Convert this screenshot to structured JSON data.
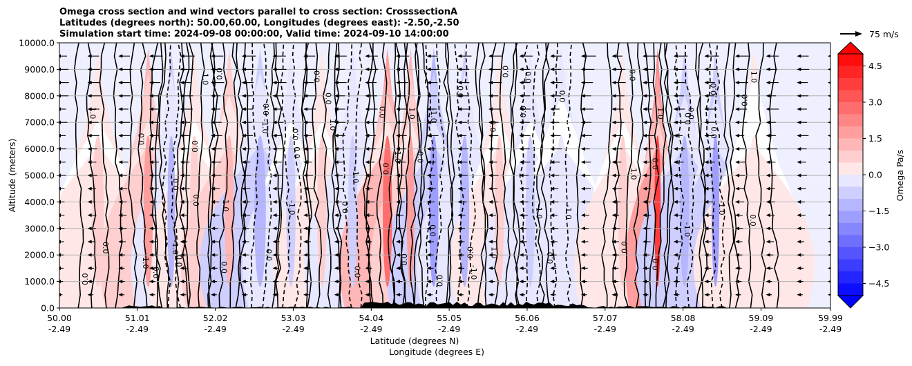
{
  "chart_data": {
    "type": "contour-cross-section",
    "title_lines": [
      "Omega cross section and wind vectors parallel to cross section: CrosssectionA",
      "Latitudes (degrees north): 50.00,60.00, Longitudes (degrees east): -2.50,-2.50",
      "Simulation start time: 2024-09-08 00:00:00, Valid time: 2024-09-10 14:00:00"
    ],
    "ylabel": "Altitude (meters)",
    "xlabel_lat": "Latitude (degrees N)",
    "xlabel_lon": "Longitude (degrees E)",
    "ylim": [
      0,
      10000
    ],
    "y_ticks": [
      "0.0",
      "1000.0",
      "2000.0",
      "3000.0",
      "4000.0",
      "5000.0",
      "6000.0",
      "7000.0",
      "8000.0",
      "9000.0",
      "10000.0"
    ],
    "y_tick_values": [
      0,
      1000,
      2000,
      3000,
      4000,
      5000,
      6000,
      7000,
      8000,
      9000,
      10000
    ],
    "xlim": [
      50.0,
      59.99
    ],
    "x_ticks_lat": [
      "50.00",
      "51.01",
      "52.02",
      "53.03",
      "54.04",
      "55.05",
      "56.06",
      "57.07",
      "58.08",
      "59.09",
      "59.99"
    ],
    "x_ticks_lon": [
      "-2.49",
      "-2.49",
      "-2.49",
      "-2.49",
      "-2.49",
      "-2.49",
      "-2.49",
      "-2.49",
      "-2.49",
      "-2.49",
      "-2.49"
    ],
    "x_tick_values": [
      50.0,
      51.01,
      52.02,
      53.03,
      54.04,
      55.05,
      56.06,
      57.07,
      58.08,
      59.09,
      59.99
    ],
    "colorbar": {
      "label": "Omega Pa/s",
      "range": [
        -5.0,
        5.0
      ],
      "tick_labels": [
        "4.5",
        "3.0",
        "1.5",
        "0.0",
        "−1.5",
        "−3.0",
        "−4.5"
      ],
      "tick_values": [
        4.5,
        3.0,
        1.5,
        0.0,
        -1.5,
        -3.0,
        -4.5
      ],
      "extend": "both"
    },
    "quiver_key": {
      "label": "75 m/s",
      "value": 75
    },
    "contour_levels_labeled": [
      "0.0",
      "1.0",
      "-1.0",
      "2.0",
      "-2.0",
      "3.0"
    ],
    "omega_features": [
      {
        "lat": 50.5,
        "sign": 1,
        "strength": 0.9,
        "width": 0.15
      },
      {
        "lat": 51.15,
        "sign": 1,
        "strength": 2.2,
        "width": 0.12
      },
      {
        "lat": 51.45,
        "sign": -1,
        "strength": 1.3,
        "width": 0.1
      },
      {
        "lat": 51.75,
        "sign": 1,
        "strength": 1.0,
        "width": 0.12
      },
      {
        "lat": 52.2,
        "sign": 1,
        "strength": 1.6,
        "width": 0.12
      },
      {
        "lat": 52.6,
        "sign": -1,
        "strength": 1.5,
        "width": 0.15
      },
      {
        "lat": 53.0,
        "sign": -1,
        "strength": 1.0,
        "width": 0.12
      },
      {
        "lat": 53.4,
        "sign": 1,
        "strength": 0.9,
        "width": 0.12
      },
      {
        "lat": 53.8,
        "sign": -1,
        "strength": 1.2,
        "width": 0.12
      },
      {
        "lat": 54.25,
        "sign": 1,
        "strength": 3.0,
        "width": 0.12
      },
      {
        "lat": 54.55,
        "sign": 1,
        "strength": 2.2,
        "width": 0.1
      },
      {
        "lat": 54.85,
        "sign": -1,
        "strength": 2.2,
        "width": 0.12
      },
      {
        "lat": 55.25,
        "sign": -1,
        "strength": 1.4,
        "width": 0.12
      },
      {
        "lat": 55.7,
        "sign": 1,
        "strength": 0.9,
        "width": 0.12
      },
      {
        "lat": 56.1,
        "sign": -1,
        "strength": 1.0,
        "width": 0.12
      },
      {
        "lat": 56.5,
        "sign": -1,
        "strength": 0.6,
        "width": 0.15
      },
      {
        "lat": 57.3,
        "sign": 1,
        "strength": 0.8,
        "width": 0.12
      },
      {
        "lat": 57.75,
        "sign": 1,
        "strength": 4.0,
        "width": 0.08
      },
      {
        "lat": 58.1,
        "sign": -1,
        "strength": 1.6,
        "width": 0.12
      },
      {
        "lat": 58.5,
        "sign": -1,
        "strength": 1.8,
        "width": 0.1
      },
      {
        "lat": 59.0,
        "sign": 1,
        "strength": 0.5,
        "width": 0.15
      }
    ]
  }
}
